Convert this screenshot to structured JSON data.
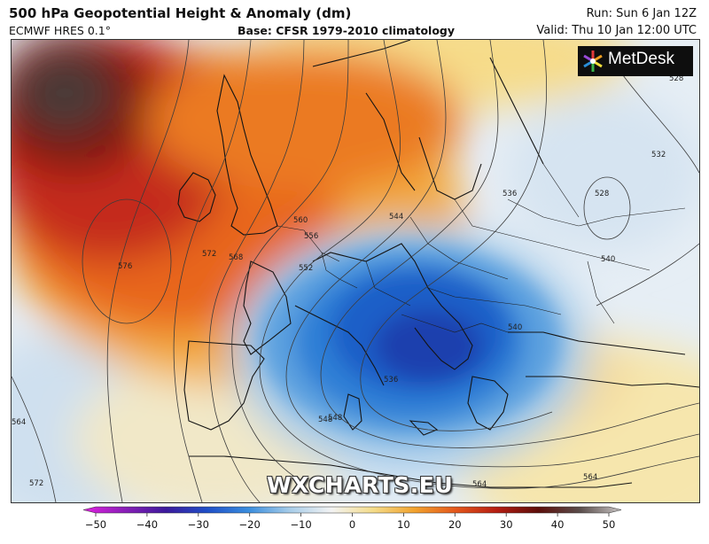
{
  "header": {
    "title": "500 hPa Geopotential Height & Anomaly (dm)",
    "model": "ECMWF HRES 0.1°",
    "base": "Base: CFSR 1979-2010 climatology",
    "run": "Run: Sun 6 Jan 12Z",
    "valid": "Valid: Thu 10 Jan 12:00 UTC"
  },
  "branding": {
    "logo_text": "MetDesk",
    "watermark": "WXCHARTS.EU"
  },
  "contour_labels": [
    "528",
    "532",
    "536",
    "540",
    "544",
    "548",
    "552",
    "556",
    "560",
    "564",
    "568",
    "572",
    "576",
    "528",
    "536",
    "540",
    "548",
    "564",
    "564",
    "572"
  ],
  "colorbar": {
    "ticks": [
      -50,
      -40,
      -30,
      -20,
      -10,
      0,
      10,
      20,
      30,
      40,
      50
    ],
    "tick_labels": [
      "−50",
      "−40",
      "−30",
      "−20",
      "−10",
      "0",
      "10",
      "20",
      "30",
      "40",
      "50"
    ],
    "colors": [
      "#e020e0",
      "#8a1fb8",
      "#3b1a9c",
      "#1f4fc8",
      "#3a8ede",
      "#a8cde9",
      "#f3f3f3",
      "#f4dc8a",
      "#f2a32e",
      "#e4571c",
      "#b51d12",
      "#5c0e0a",
      "#5a4d4b",
      "#c9c5c4"
    ]
  }
}
